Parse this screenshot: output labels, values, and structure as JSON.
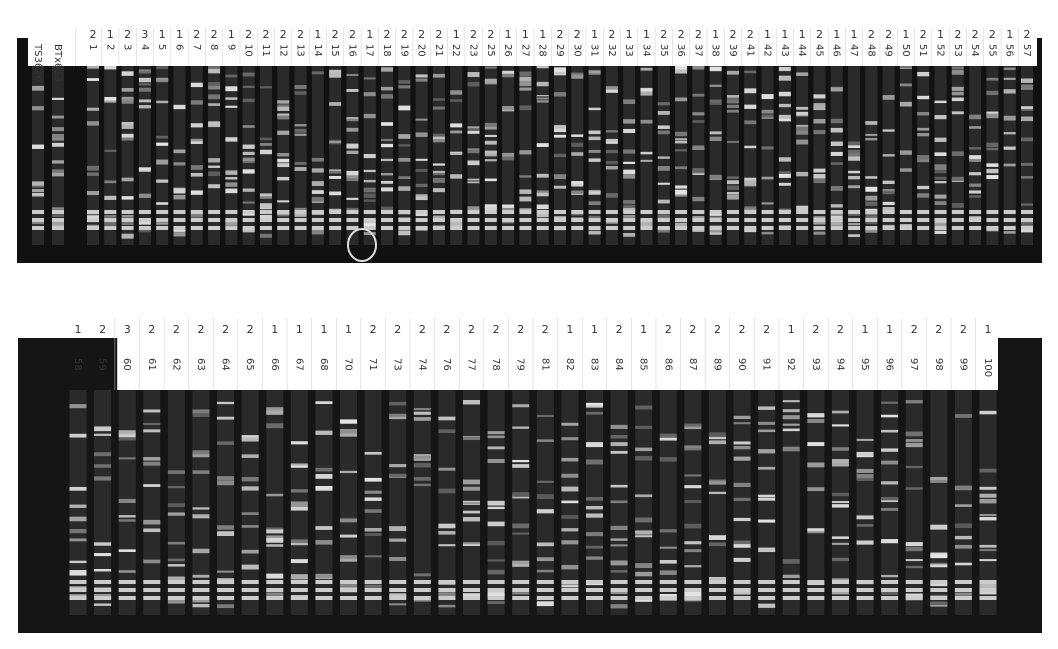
{
  "panels": [
    {
      "lanes": [
        {
          "label": "TS3620"
        },
        {
          "label": "BTx623"
        },
        {
          "label": "1",
          "score": "2"
        },
        {
          "label": "2",
          "score": "1"
        },
        {
          "label": "3",
          "score": "2"
        },
        {
          "label": "4",
          "score": "3"
        },
        {
          "label": "5",
          "score": "1"
        },
        {
          "label": "6",
          "score": "1"
        },
        {
          "label": "7",
          "score": "2"
        },
        {
          "label": "8",
          "score": "2"
        },
        {
          "label": "9",
          "score": "1"
        },
        {
          "label": "10",
          "score": "2"
        },
        {
          "label": "11",
          "score": "2"
        },
        {
          "label": "12",
          "score": "2"
        },
        {
          "label": "13",
          "score": "2"
        },
        {
          "label": "14",
          "score": "1"
        },
        {
          "label": "15",
          "score": "2"
        },
        {
          "label": "16",
          "score": "2"
        },
        {
          "label": "17",
          "score": "1"
        },
        {
          "label": "18",
          "score": "2"
        },
        {
          "label": "19",
          "score": "2"
        },
        {
          "label": "20",
          "score": "2"
        },
        {
          "label": "21",
          "score": "2"
        },
        {
          "label": "22",
          "score": "1"
        },
        {
          "label": "23",
          "score": "2"
        },
        {
          "label": "25",
          "score": "2"
        },
        {
          "label": "26",
          "score": "1"
        },
        {
          "label": "27",
          "score": "1"
        },
        {
          "label": "28",
          "score": "1"
        },
        {
          "label": "29",
          "score": "2"
        },
        {
          "label": "30",
          "score": "2"
        },
        {
          "label": "31",
          "score": "1"
        },
        {
          "label": "32",
          "score": "2"
        },
        {
          "label": "33",
          "score": "1"
        },
        {
          "label": "34",
          "score": "1"
        },
        {
          "label": "35",
          "score": "2"
        },
        {
          "label": "36",
          "score": "2"
        },
        {
          "label": "37",
          "score": "2"
        },
        {
          "label": "38",
          "score": "1"
        },
        {
          "label": "39",
          "score": "2"
        },
        {
          "label": "41",
          "score": "2"
        },
        {
          "label": "42",
          "score": "1"
        },
        {
          "label": "43",
          "score": "1"
        },
        {
          "label": "44",
          "score": "1"
        },
        {
          "label": "45",
          "score": "2"
        },
        {
          "label": "46",
          "score": "1"
        },
        {
          "label": "47",
          "score": "1"
        },
        {
          "label": "48",
          "score": "2"
        },
        {
          "label": "49",
          "score": "2"
        },
        {
          "label": "50",
          "score": "1"
        },
        {
          "label": "51",
          "score": "2"
        },
        {
          "label": "52",
          "score": "1"
        },
        {
          "label": "53",
          "score": "2"
        },
        {
          "label": "54",
          "score": "2"
        },
        {
          "label": "55",
          "score": "2"
        },
        {
          "label": "56",
          "score": "1"
        },
        {
          "label": "57",
          "score": "2"
        }
      ]
    },
    {
      "lanes": [
        {
          "label": "58",
          "score": "1"
        },
        {
          "label": "59",
          "score": "2"
        },
        {
          "label": "60",
          "score": "3"
        },
        {
          "label": "61",
          "score": "2"
        },
        {
          "label": "62",
          "score": "2"
        },
        {
          "label": "63",
          "score": "2"
        },
        {
          "label": "64",
          "score": "2"
        },
        {
          "label": "65",
          "score": "2"
        },
        {
          "label": "66",
          "score": "1"
        },
        {
          "label": "67",
          "score": "1"
        },
        {
          "label": "68",
          "score": "1"
        },
        {
          "label": "70",
          "score": "1"
        },
        {
          "label": "71",
          "score": "2"
        },
        {
          "label": "73",
          "score": "2"
        },
        {
          "label": "74",
          "score": "2"
        },
        {
          "label": "76",
          "score": "2"
        },
        {
          "label": "77",
          "score": "2"
        },
        {
          "label": "78",
          "score": "2"
        },
        {
          "label": "79",
          "score": "2"
        },
        {
          "label": "81",
          "score": "2"
        },
        {
          "label": "82",
          "score": "1"
        },
        {
          "label": "83",
          "score": "1"
        },
        {
          "label": "84",
          "score": "2"
        },
        {
          "label": "85",
          "score": "1"
        },
        {
          "label": "86",
          "score": "2"
        },
        {
          "label": "87",
          "score": "2"
        },
        {
          "label": "89",
          "score": "2"
        },
        {
          "label": "90",
          "score": "2"
        },
        {
          "label": "91",
          "score": "2"
        },
        {
          "label": "92",
          "score": "1"
        },
        {
          "label": "93",
          "score": "2"
        },
        {
          "label": "94",
          "score": "2"
        },
        {
          "label": "95",
          "score": "1"
        },
        {
          "label": "96",
          "score": "1"
        },
        {
          "label": "97",
          "score": "2"
        },
        {
          "label": "98",
          "score": "2"
        },
        {
          "label": "99",
          "score": "2"
        },
        {
          "label": "100",
          "score": "1"
        }
      ]
    }
  ]
}
